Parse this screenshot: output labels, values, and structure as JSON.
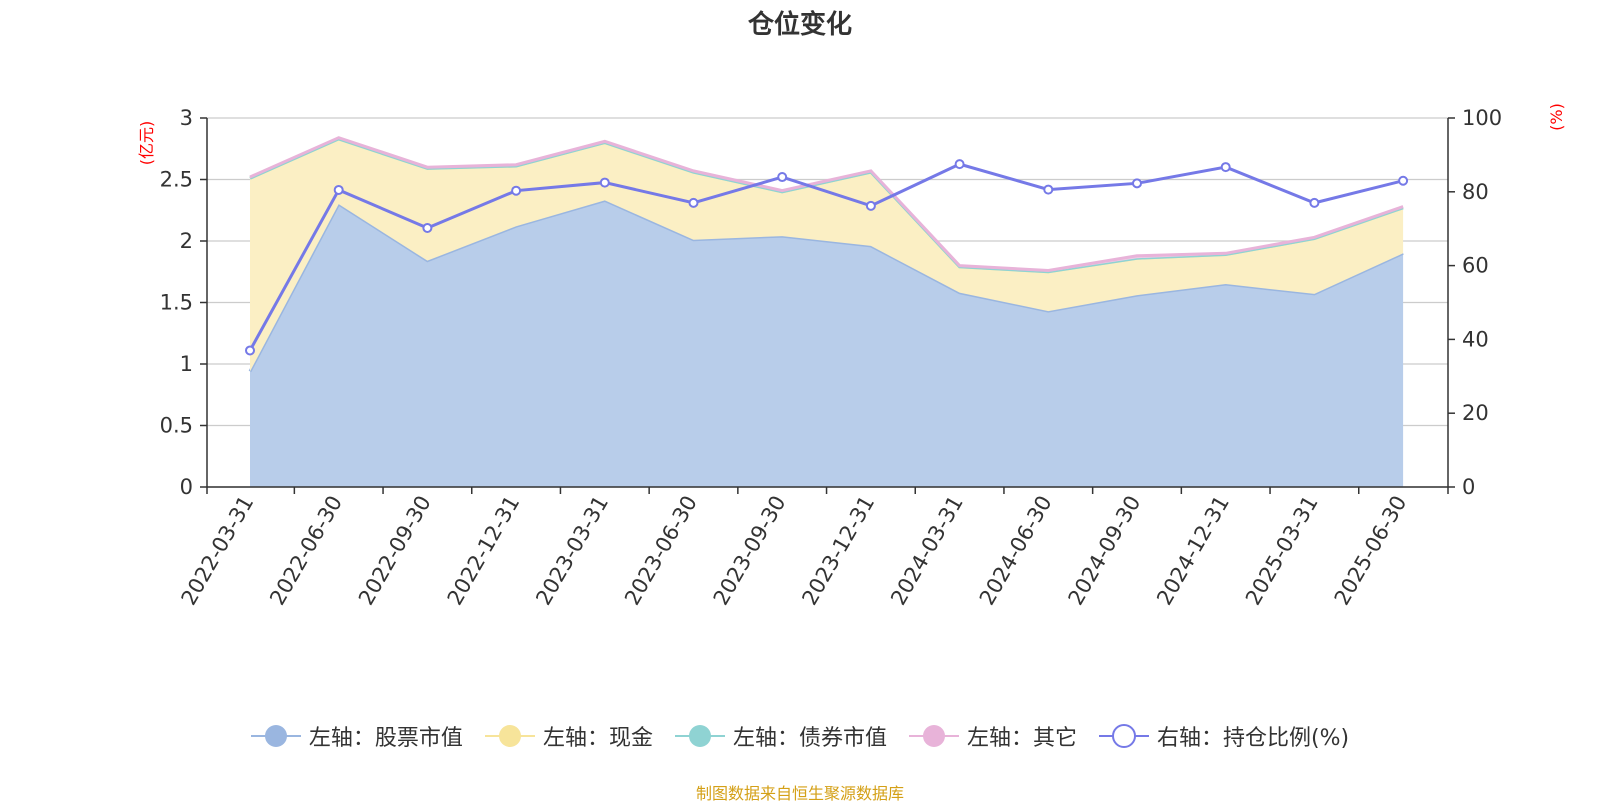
{
  "chart_data": {
    "type": "area",
    "title": "仓位变化",
    "left_axis_unit": "(亿元)",
    "right_axis_unit": "(%)",
    "categories": [
      "2022-03-31",
      "2022-06-30",
      "2022-09-30",
      "2022-12-31",
      "2023-03-31",
      "2023-06-30",
      "2023-09-30",
      "2023-12-31",
      "2024-03-31",
      "2024-06-30",
      "2024-09-30",
      "2024-12-31",
      "2025-03-31",
      "2025-06-30"
    ],
    "left_ylim": [
      0,
      3
    ],
    "left_ticks": [
      "0",
      "0.5",
      "1",
      "1.5",
      "2",
      "2.5",
      "3"
    ],
    "right_ylim": [
      0,
      100
    ],
    "right_ticks": [
      "0",
      "20",
      "40",
      "60",
      "80",
      "100"
    ],
    "grid": true,
    "legend_position": "bottom",
    "series": [
      {
        "name": "左轴：股票市值",
        "axis": "left",
        "kind": "stacked-area",
        "color": "#9ab6e0",
        "fill": "#b8cdea",
        "values": [
          0.94,
          2.3,
          1.84,
          2.12,
          2.33,
          2.01,
          2.04,
          1.96,
          1.58,
          1.43,
          1.56,
          1.65,
          1.57,
          1.9
        ]
      },
      {
        "name": "左轴：现金",
        "axis": "left",
        "kind": "stacked-area",
        "color": "#f7e49a",
        "fill": "#fbefc4",
        "values": [
          1.57,
          0.53,
          0.75,
          0.49,
          0.47,
          0.55,
          0.36,
          0.6,
          0.21,
          0.32,
          0.3,
          0.24,
          0.45,
          0.37
        ]
      },
      {
        "name": "左轴：债券市值",
        "axis": "left",
        "kind": "stacked-area",
        "color": "#8fd3d3",
        "fill": "#b5e3e3",
        "values": [
          0,
          0,
          0,
          0,
          0,
          0,
          0,
          0,
          0,
          0,
          0,
          0,
          0,
          0
        ]
      },
      {
        "name": "左轴：其它",
        "axis": "left",
        "kind": "stacked-area",
        "color": "#e8b3d9",
        "fill": "#f0cce6",
        "values": [
          0.01,
          0.01,
          0.01,
          0.01,
          0.01,
          0.01,
          0.01,
          0.01,
          0.01,
          0.01,
          0.02,
          0.01,
          0.01,
          0.01
        ]
      },
      {
        "name": "右轴：持仓比例(%)",
        "axis": "right",
        "kind": "line",
        "color": "#7579e7",
        "values": [
          37.0,
          80.5,
          70.2,
          80.3,
          82.5,
          77.0,
          84.0,
          76.2,
          87.5,
          80.6,
          82.3,
          86.7,
          77.0,
          83.0
        ]
      }
    ]
  },
  "footer": {
    "source": "制图数据来自恒生聚源数据库"
  }
}
